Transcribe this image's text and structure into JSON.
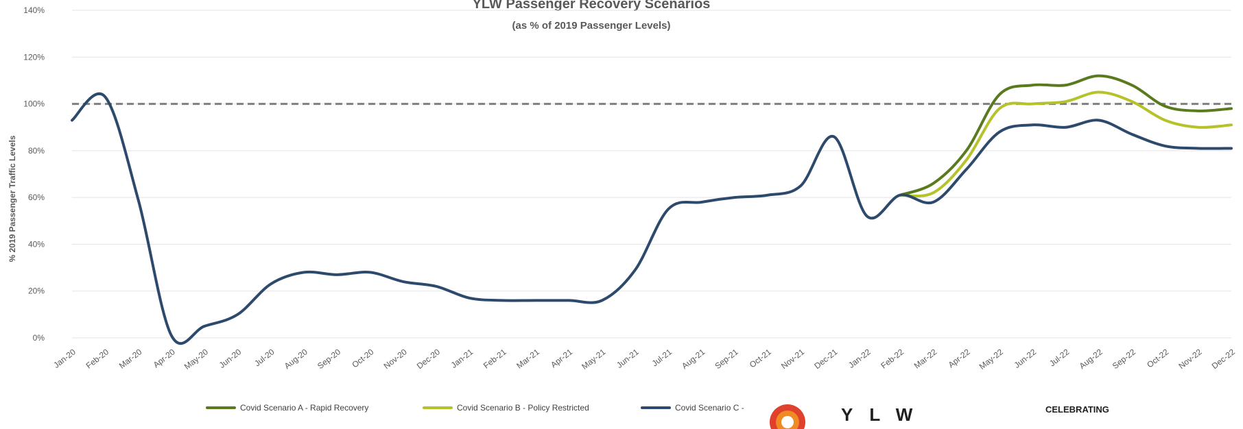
{
  "chart_data": {
    "type": "line",
    "title": "YLW Passenger Recovery Scenarios",
    "subtitle": "(as % of 2019 Passenger Levels)",
    "ylabel": "% 2019 Passenger Traffic Levels",
    "xlabel": "",
    "ylim": [
      0,
      140
    ],
    "yticks": [
      "0%",
      "20%",
      "40%",
      "60%",
      "80%",
      "100%",
      "120%",
      "140%"
    ],
    "categories": [
      "Jan-20",
      "Feb-20",
      "Mar-20",
      "Apr-20",
      "May-20",
      "Jun-20",
      "Jul-20",
      "Aug-20",
      "Sep-20",
      "Oct-20",
      "Nov-20",
      "Dec-20",
      "Jan-21",
      "Feb-21",
      "Mar-21",
      "Apr-21",
      "May-21",
      "Jun-21",
      "Jul-21",
      "Aug-21",
      "Sep-21",
      "Oct-21",
      "Nov-21",
      "Dec-21",
      "Jan-22",
      "Feb-22",
      "Mar-22",
      "Apr-22",
      "May-22",
      "Jun-22",
      "Jul-22",
      "Aug-22",
      "Sep-22",
      "Oct-22",
      "Nov-22",
      "Dec-22"
    ],
    "reference_line": {
      "value": 100,
      "style": "dashed"
    },
    "grid": true,
    "series": [
      {
        "name": "Covid Scenario A - Rapid Recovery",
        "color": "#5a7a1e",
        "values": [
          null,
          null,
          null,
          null,
          null,
          null,
          null,
          null,
          null,
          null,
          null,
          null,
          null,
          null,
          null,
          null,
          null,
          null,
          null,
          null,
          null,
          null,
          null,
          null,
          null,
          61,
          66,
          80,
          104,
          108,
          108,
          112,
          108,
          99,
          97,
          98
        ]
      },
      {
        "name": "Covid Scenario B - Policy Restricted",
        "color": "#b5c22a",
        "values": [
          null,
          null,
          null,
          null,
          null,
          null,
          null,
          null,
          null,
          null,
          null,
          null,
          null,
          null,
          null,
          null,
          null,
          null,
          null,
          null,
          null,
          null,
          null,
          null,
          null,
          61,
          62,
          76,
          98,
          100,
          101,
          105,
          101,
          93,
          90,
          91
        ]
      },
      {
        "name": "Covid Scenario C -",
        "color": "#2d4a6d",
        "values": [
          93,
          103,
          59,
          1,
          5,
          10,
          23,
          28,
          27,
          28,
          24,
          22,
          17,
          16,
          16,
          16,
          16,
          29,
          55,
          58,
          60,
          61,
          65,
          86,
          52,
          61,
          58,
          72,
          88,
          91,
          90,
          93,
          87,
          82,
          81,
          81
        ]
      }
    ]
  },
  "logo": {
    "text": "CELEBRATING",
    "letters": "YLW"
  }
}
